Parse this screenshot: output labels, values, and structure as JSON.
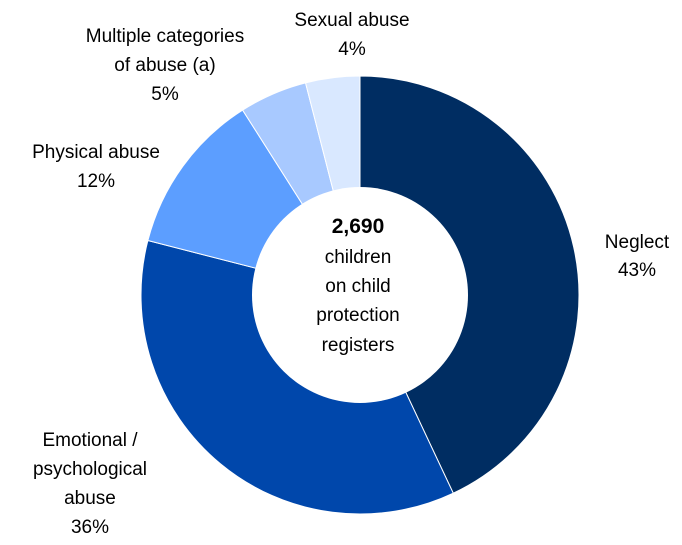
{
  "chart_data": {
    "type": "pie",
    "variant": "donut",
    "categories": [
      "Neglect",
      "Emotional / psychological abuse",
      "Physical abuse",
      "Multiple categories of abuse (a)",
      "Sexual abuse"
    ],
    "values": [
      43,
      36,
      12,
      5,
      4
    ],
    "unit": "%",
    "colors": [
      "#002d62",
      "#0047ab",
      "#5c9eff",
      "#a8c9ff",
      "#d9e8ff"
    ],
    "slice_labels": [
      {
        "lines": [
          "Neglect"
        ],
        "value": "43%"
      },
      {
        "lines": [
          "Emotional /",
          "psychological",
          "abuse"
        ],
        "value": "36%"
      },
      {
        "lines": [
          "Physical abuse"
        ],
        "value": "12%"
      },
      {
        "lines": [
          "Multiple categories",
          "of abuse (a)"
        ],
        "value": "5%"
      },
      {
        "lines": [
          "Sexual abuse"
        ],
        "value": "4%"
      }
    ],
    "center": {
      "total": "2,690",
      "lines": [
        "children",
        "on child",
        "protection",
        "registers"
      ]
    }
  }
}
